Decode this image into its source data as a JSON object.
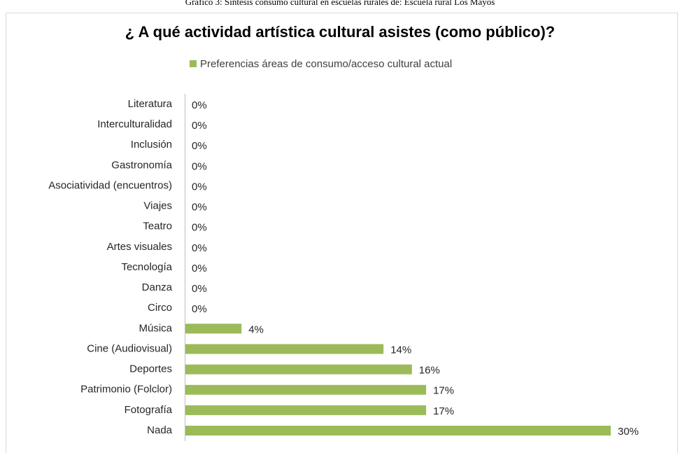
{
  "caption": "Gráfico 3: Síntesis consumo cultural en escuelas rurales de: Escuela rural Los Mayos",
  "chart_data": {
    "type": "bar",
    "orientation": "horizontal",
    "title": "¿ A qué actividad artística cultural asistes (como público)?",
    "categories": [
      "Literatura",
      "Interculturalidad",
      "Inclusión",
      "Gastronomía",
      "Asociatividad (encuentros)",
      "Viajes",
      "Teatro",
      "Artes visuales",
      "Tecnología",
      "Danza",
      "Circo",
      "Música",
      "Cine (Audiovisual)",
      "Deportes",
      "Patrimonio (Folclor)",
      "Fotografía",
      "Nada"
    ],
    "series": [
      {
        "name": "Preferencias áreas de consumo/acceso cultural actual",
        "color": "#9bbb59",
        "values": [
          0,
          0,
          0,
          0,
          0,
          0,
          0,
          0,
          0,
          0,
          0,
          4,
          14,
          16,
          17,
          17,
          30
        ],
        "value_labels": [
          "0%",
          "0%",
          "0%",
          "0%",
          "0%",
          "0%",
          "0%",
          "0%",
          "0%",
          "0%",
          "0%",
          "4%",
          "14%",
          "16%",
          "17%",
          "17%",
          "30%"
        ]
      }
    ],
    "legend": "top"
  }
}
